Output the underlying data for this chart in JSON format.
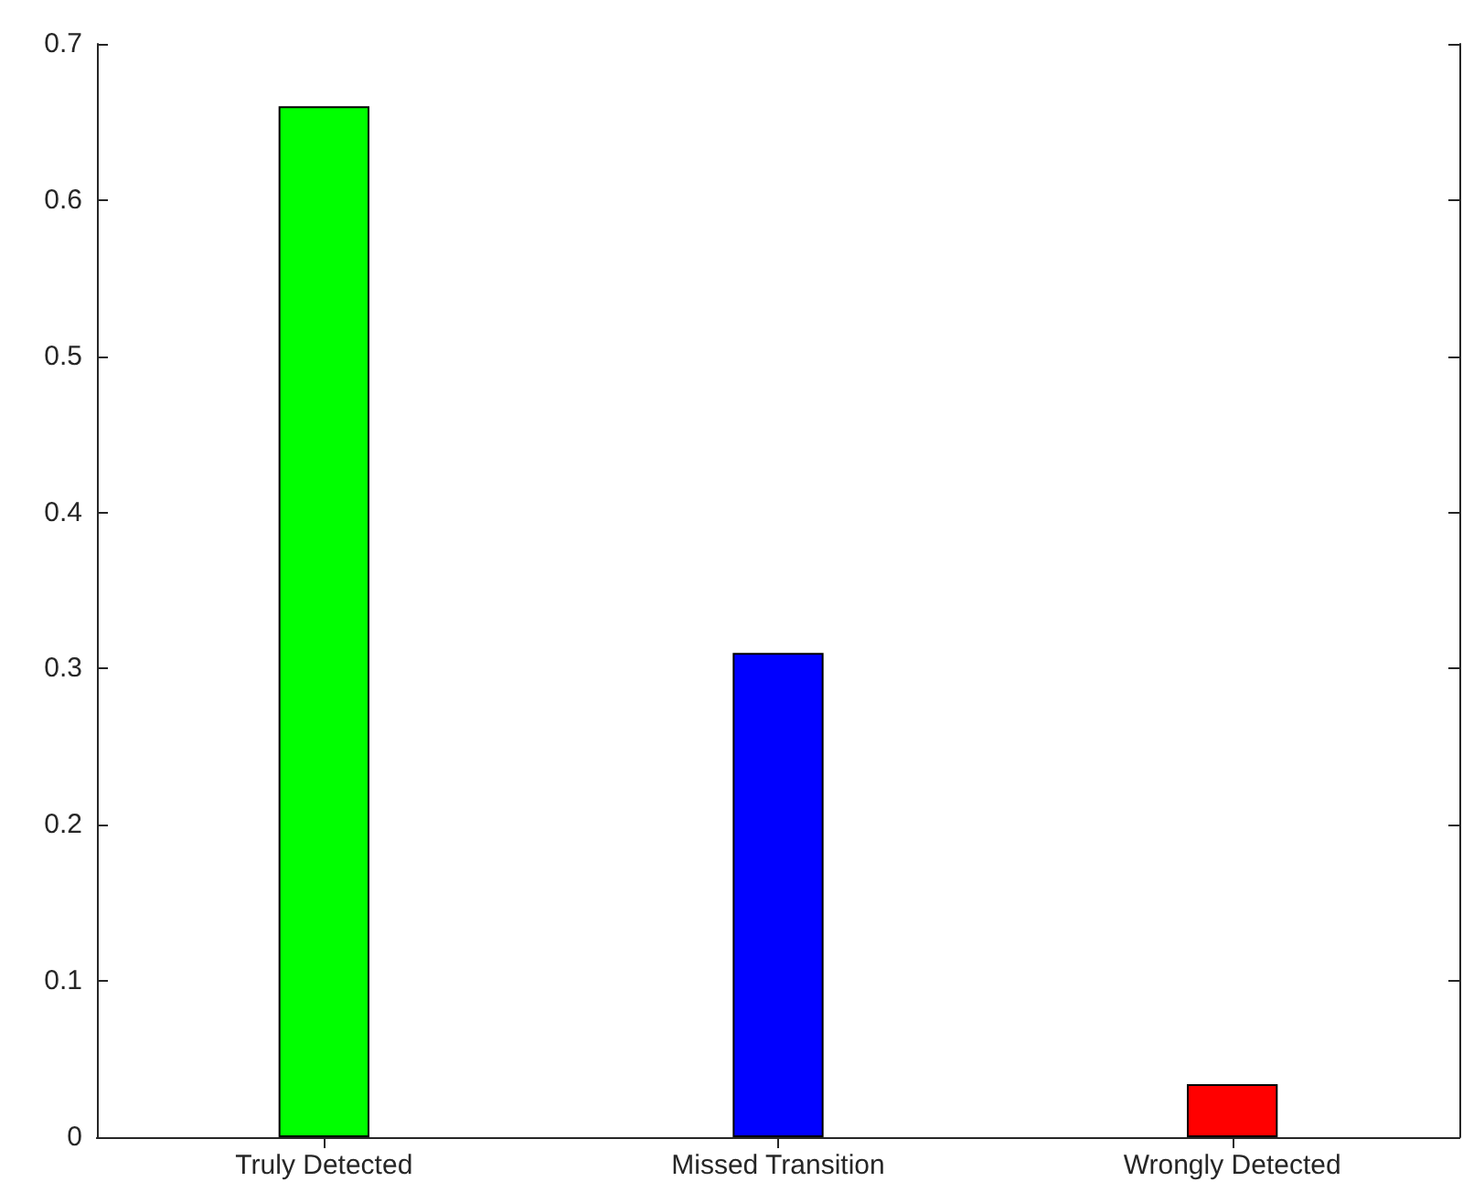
{
  "chart_data": {
    "type": "bar",
    "categories": [
      "Truly Detected",
      "Missed Transition",
      "Wrongly Detected"
    ],
    "values": [
      0.66,
      0.31,
      0.034
    ],
    "colors": [
      "#00ff00",
      "#0000ff",
      "#ff0000"
    ],
    "ylim": [
      0,
      0.7
    ],
    "yticks": [
      0,
      0.1,
      0.2,
      0.3,
      0.4,
      0.5,
      0.6,
      0.7
    ]
  }
}
